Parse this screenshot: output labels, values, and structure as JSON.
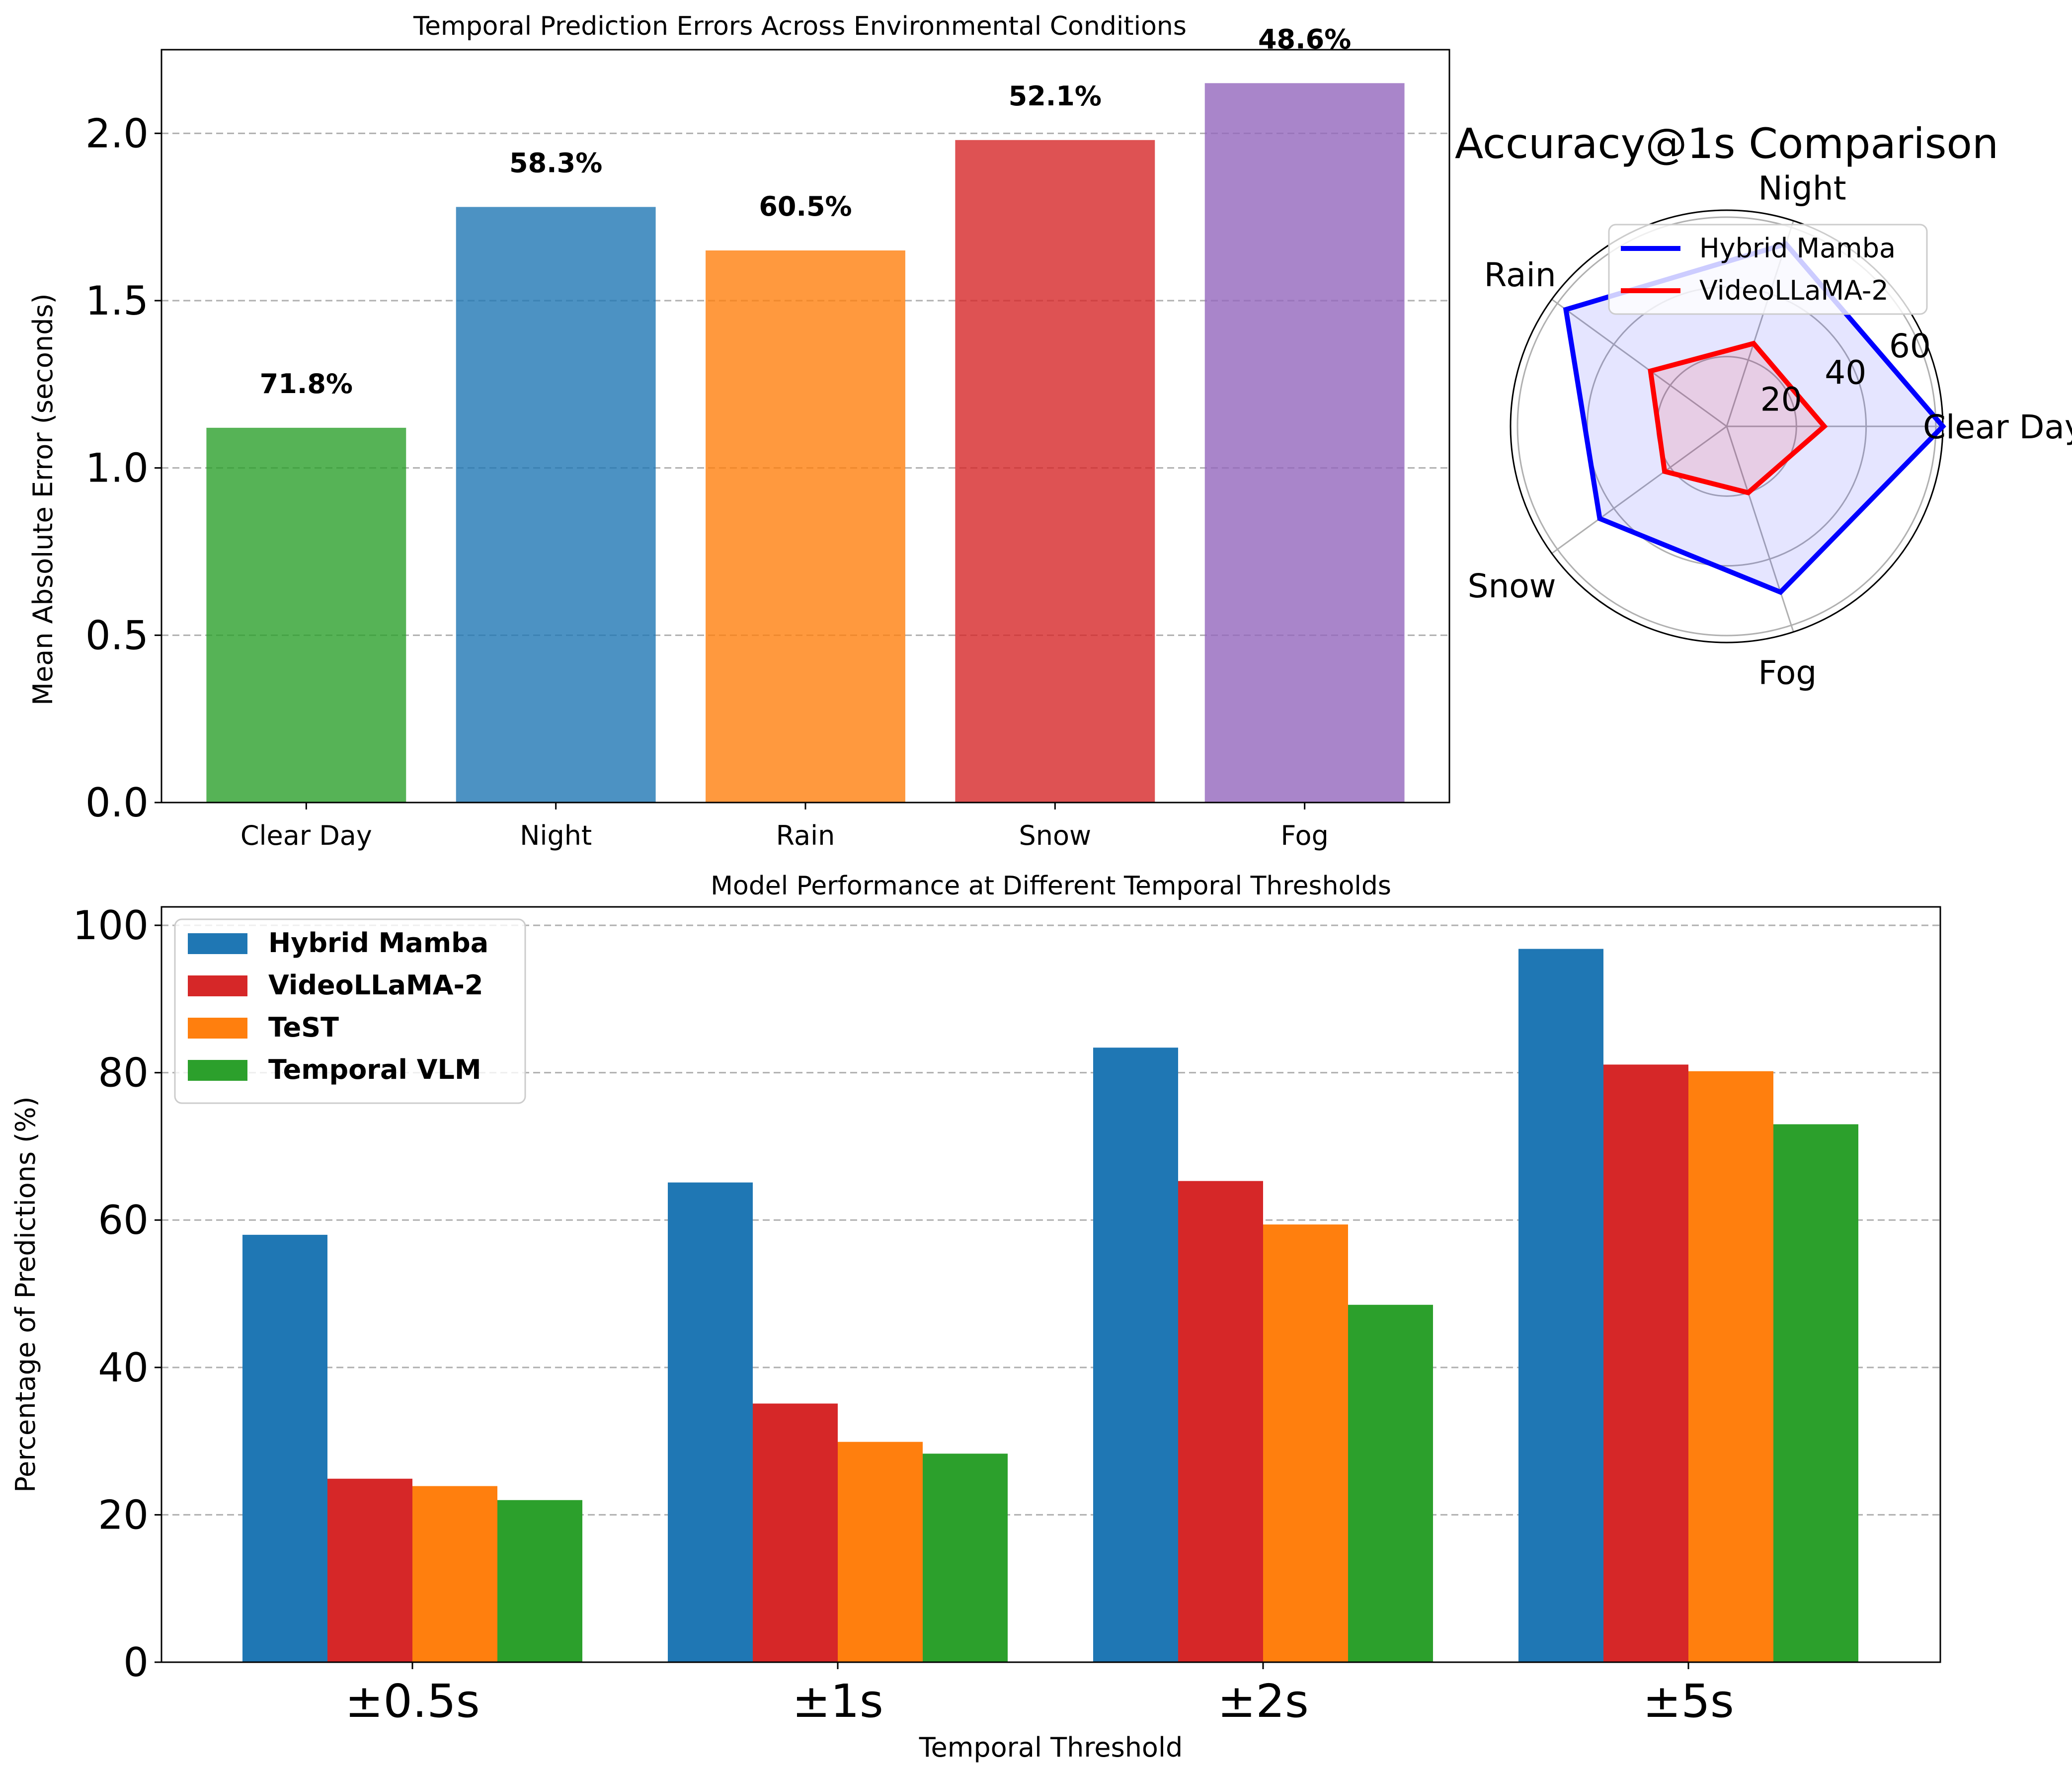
{
  "chart_data": [
    {
      "type": "bar",
      "title": "Temporal Prediction Errors Across Environmental Conditions",
      "xlabel": "",
      "ylabel": "Mean Absolute Error (seconds)",
      "categories": [
        "Clear Day",
        "Night",
        "Rain",
        "Snow",
        "Fog"
      ],
      "values": [
        1.12,
        1.78,
        1.65,
        1.98,
        2.15
      ],
      "bar_labels": [
        "71.8%",
        "58.3%",
        "60.5%",
        "52.1%",
        "48.6%"
      ],
      "colors": [
        "#2ca02c",
        "#1f77b4",
        "#ff7f0e",
        "#d62728",
        "#9467bd"
      ],
      "ylim": [
        0,
        2.25
      ],
      "yticks": [
        0.0,
        0.5,
        1.0,
        1.5,
        2.0
      ],
      "ytick_labels": [
        "0.0",
        "0.5",
        "1.0",
        "1.5",
        "2.0"
      ],
      "grid": "y-dashed"
    },
    {
      "type": "radar",
      "title": "Accuracy@1s Comparison",
      "categories": [
        "Clear Day",
        "Night",
        "Rain",
        "Snow",
        "Fog"
      ],
      "rlim": [
        0,
        62
      ],
      "rticks": [
        20,
        40,
        60
      ],
      "rtick_labels": [
        "20",
        "40",
        "60"
      ],
      "series": [
        {
          "name": "Hybrid Mamba",
          "values": [
            62,
            55,
            57,
            45,
            50
          ],
          "color": "#0000ff"
        },
        {
          "name": "VideoLLaMA-2",
          "values": [
            28,
            25,
            27,
            22,
            20
          ],
          "color": "#ff0000"
        }
      ],
      "legend": "top-right"
    },
    {
      "type": "bar",
      "title": "Model Performance at Different Temporal Thresholds",
      "xlabel": "Temporal Threshold",
      "ylabel": "Percentage of Predictions (%)",
      "categories": [
        "±0.5s",
        "±1s",
        "±2s",
        "±5s"
      ],
      "series": [
        {
          "name": "Hybrid Mamba",
          "values": [
            58.0,
            65.1,
            83.4,
            96.8
          ],
          "color": "#1f77b4"
        },
        {
          "name": "VideoLLaMA-2",
          "values": [
            24.9,
            35.1,
            65.3,
            81.1
          ],
          "color": "#d62728"
        },
        {
          "name": "TeST",
          "values": [
            23.9,
            29.9,
            59.4,
            80.2
          ],
          "color": "#ff7f0e"
        },
        {
          "name": "Temporal VLM",
          "values": [
            22.0,
            28.3,
            48.5,
            73.0
          ],
          "color": "#2ca02c"
        }
      ],
      "ylim": [
        0,
        100
      ],
      "yticks": [
        0,
        20,
        40,
        60,
        80,
        100
      ],
      "ytick_labels": [
        "0",
        "20",
        "40",
        "60",
        "80",
        "100"
      ],
      "grid": "y-dashed",
      "legend": "top-left"
    }
  ]
}
